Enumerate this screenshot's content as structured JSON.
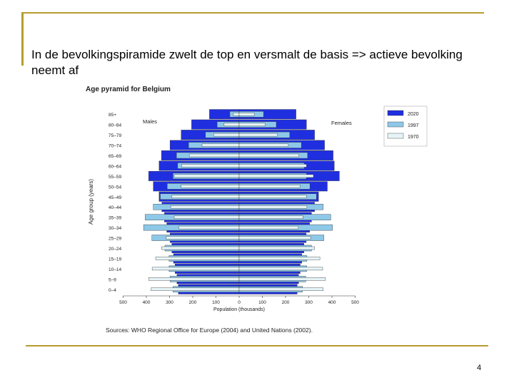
{
  "slide": {
    "title": "In de bevolkingspiramide zwelt de top en versmalt  de basis  => actieve bevolking neemt af",
    "page_number": "4"
  },
  "chart_data": {
    "type": "bar",
    "orientation": "population-pyramid",
    "title": "Age pyramid for Belgium",
    "xlabel": "Population (thousands)",
    "ylabel": "Age group (years)",
    "source": "Sources: WHO Regional Office for Europe (2004) and United Nations (2002).",
    "side_labels": {
      "left": "Males",
      "right": "Females"
    },
    "x_ticks": [
      "500",
      "400",
      "300",
      "200",
      "100",
      "0",
      "100",
      "200",
      "300",
      "400",
      "500"
    ],
    "xlim": [
      -500,
      500
    ],
    "legend_position": "top-right",
    "categories": [
      "0–4",
      "5–9",
      "10–14",
      "15–19",
      "20–24",
      "25–29",
      "30–34",
      "35–39",
      "40–44",
      "45–49",
      "50–54",
      "55–59",
      "60–64",
      "65–69",
      "70–74",
      "75–79",
      "80–84",
      "85+"
    ],
    "series": [
      {
        "name": "2020",
        "color": "#1f2fe0",
        "males": [
          262,
          268,
          276,
          283,
          290,
          298,
          312,
          322,
          333,
          345,
          370,
          390,
          345,
          335,
          298,
          250,
          205,
          128
        ],
        "females": [
          250,
          256,
          263,
          270,
          279,
          289,
          304,
          312,
          325,
          342,
          380,
          432,
          410,
          405,
          368,
          325,
          290,
          245
        ]
      },
      {
        "name": "1997",
        "color": "#8ec8e8",
        "males": [
          285,
          298,
          302,
          302,
          320,
          376,
          412,
          405,
          370,
          340,
          310,
          285,
          265,
          270,
          218,
          145,
          95,
          40
        ],
        "females": [
          273,
          287,
          291,
          292,
          312,
          365,
          402,
          395,
          362,
          333,
          305,
          290,
          280,
          295,
          268,
          218,
          160,
          105
        ]
      },
      {
        "name": "1970",
        "color": "#e6f4f8",
        "males": [
          380,
          390,
          375,
          360,
          335,
          315,
          260,
          280,
          295,
          290,
          250,
          280,
          248,
          215,
          160,
          110,
          65,
          25
        ],
        "females": [
          362,
          372,
          360,
          348,
          325,
          308,
          255,
          275,
          292,
          290,
          262,
          320,
          290,
          258,
          212,
          165,
          112,
          65
        ]
      }
    ]
  }
}
